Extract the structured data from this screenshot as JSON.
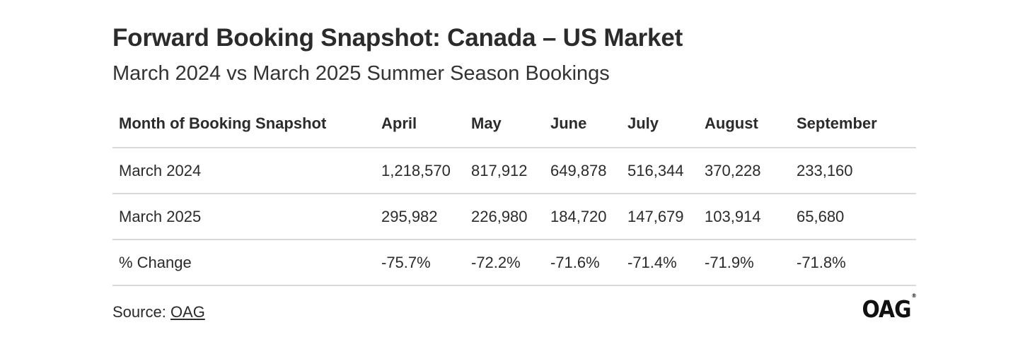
{
  "chart_data": {
    "type": "table",
    "title": "Forward Booking Snapshot: Canada – US Market",
    "subtitle": "March 2024 vs March 2025 Summer Season Bookings",
    "columns": [
      "Month of Booking Snapshot",
      "April",
      "May",
      "June",
      "July",
      "August",
      "September"
    ],
    "rows": [
      [
        "March 2024",
        "1,218,570",
        "817,912",
        "649,878",
        "516,344",
        "370,228",
        "233,160"
      ],
      [
        "March 2025",
        "295,982",
        "226,980",
        "184,720",
        "147,679",
        "103,914",
        "65,680"
      ],
      [
        "% Change",
        "-75.7%",
        "-72.2%",
        "-71.6%",
        "-71.4%",
        "-71.9%",
        "-71.8%"
      ]
    ],
    "grid": "horizontal-lines"
  },
  "footer": {
    "source_label": "Source:",
    "source_link": "OAG",
    "logo_text": "OAG",
    "logo_mark": "®"
  },
  "colors": {
    "text": "#2b2b2b",
    "rule": "#d9d9d9",
    "background": "#ffffff"
  }
}
